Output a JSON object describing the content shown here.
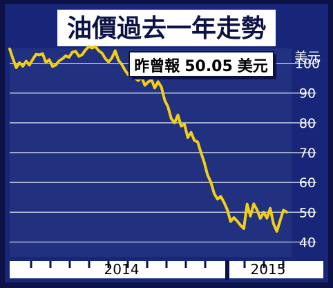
{
  "chart_data": {
    "type": "line",
    "title": "油價過去一年走勢",
    "annotation": {
      "prefix": "昨曾報",
      "value": "50.05",
      "unit": "美元"
    },
    "y_unit": "美元",
    "ylim": [
      35,
      105
    ],
    "y_ticks": [
      100,
      90,
      80,
      70,
      60,
      50,
      40
    ],
    "grid": true,
    "x_labels": [
      "2014",
      "2015"
    ],
    "legend": "none",
    "colors": {
      "background": "#18267a",
      "plot": "#21307f",
      "frame": "#0c1246",
      "grid": "#e8ecf6",
      "line": "#f1cf15",
      "text": "#ffffff",
      "axis_band": "#ffffff"
    },
    "series": [
      {
        "values": [
          104.8,
          101.5,
          98.5,
          100.2,
          99.0,
          100.7,
          99.4,
          101.3,
          103.0,
          102.8,
          103.2,
          100.2,
          101.2,
          98.9,
          99.4,
          100.8,
          101.5,
          102.5,
          102.0,
          103.7,
          104.0,
          102.3,
          102.9,
          104.5,
          105.6,
          105.1,
          105.6,
          104.2,
          103.4,
          101.6,
          100.4,
          101.8,
          104.2,
          101.0,
          99.6,
          97.6,
          96.1,
          97.5,
          95.0,
          94.2,
          95.3,
          92.6,
          93.7,
          94.5,
          91.7,
          93.8,
          92.0,
          87.6,
          85.4,
          81.4,
          80.0,
          82.6,
          78.9,
          79.5,
          75.1,
          76.8,
          74.1,
          73.6,
          70.0,
          66.7,
          62.5,
          60.1,
          56.3,
          54.4,
          55.3,
          53.3,
          50.8,
          46.9,
          48.2,
          47.0,
          45.6,
          44.5,
          52.7,
          48.7,
          52.8,
          50.8,
          47.9,
          50.0,
          48.0,
          51.3,
          46.1,
          43.6,
          47.2,
          50.7,
          50.05
        ]
      }
    ]
  }
}
